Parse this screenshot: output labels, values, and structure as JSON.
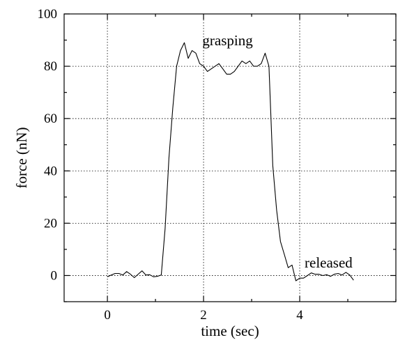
{
  "chart_data": {
    "type": "line",
    "title": "",
    "xlabel": "time (sec)",
    "ylabel": "force (nN)",
    "xlim": [
      -0.9,
      6.0
    ],
    "ylim": [
      -10,
      100
    ],
    "x_ticks": [
      0,
      2,
      4
    ],
    "x_tick_labels": [
      "0",
      "2",
      "4"
    ],
    "y_ticks": [
      0,
      20,
      40,
      60,
      80,
      100
    ],
    "y_tick_labels": [
      "0",
      "20",
      "40",
      "60",
      "80",
      "100"
    ],
    "grid": true,
    "annotations": [
      {
        "text": "grasping",
        "x": 2.5,
        "y": 88
      },
      {
        "text": "released",
        "x": 4.6,
        "y": 3
      }
    ],
    "series": [
      {
        "color": "#000000",
        "x": [
          0.0,
          0.08,
          0.16,
          0.24,
          0.32,
          0.4,
          0.48,
          0.56,
          0.64,
          0.72,
          0.8,
          0.88,
          0.96,
          1.04,
          1.12,
          1.2,
          1.28,
          1.36,
          1.44,
          1.52,
          1.6,
          1.68,
          1.76,
          1.84,
          1.92,
          2.0,
          2.08,
          2.16,
          2.24,
          2.32,
          2.4,
          2.48,
          2.56,
          2.64,
          2.72,
          2.8,
          2.88,
          2.96,
          3.04,
          3.12,
          3.2,
          3.28,
          3.36,
          3.44,
          3.52,
          3.6,
          3.68,
          3.76,
          3.84,
          3.92,
          4.0,
          4.08,
          4.16,
          4.24,
          4.32,
          4.4,
          4.48,
          4.56,
          4.64,
          4.72,
          4.8,
          4.88,
          4.96,
          5.04,
          5.12
        ],
        "y": [
          -0.5,
          0.2,
          0.8,
          0.8,
          0.2,
          1.5,
          0.5,
          -0.8,
          0.5,
          1.8,
          0.2,
          0.3,
          -0.5,
          -0.3,
          0.2,
          18,
          45,
          64,
          80,
          86,
          89,
          83,
          86,
          85,
          81,
          80,
          78,
          79,
          80,
          81,
          79,
          77,
          77,
          78,
          80,
          82,
          81,
          82,
          80,
          80,
          81,
          85,
          80,
          42,
          25,
          13,
          8,
          3,
          4,
          -2,
          -1,
          -1,
          0,
          1,
          0.5,
          0.5,
          0,
          0.3,
          -0.3,
          0.5,
          0.8,
          0.2,
          1.2,
          0.2,
          -1.8
        ]
      }
    ]
  }
}
